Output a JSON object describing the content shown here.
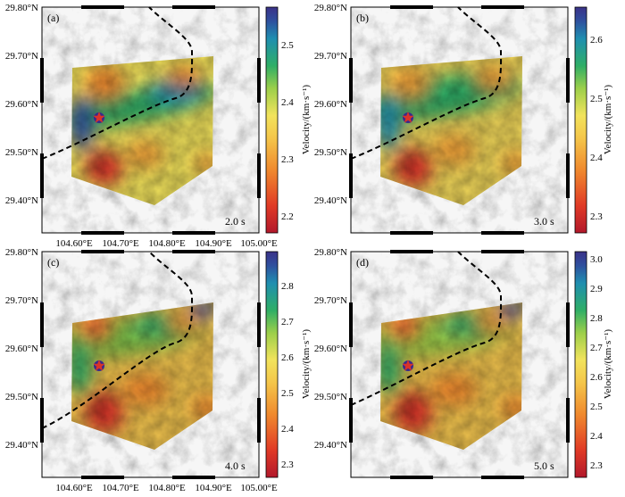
{
  "panels": [
    {
      "label": "(a)",
      "period": "2.0 s",
      "colorbar": {
        "ticks": [
          "2.2",
          "2.3",
          "2.4",
          "2.5"
        ],
        "title": "Velocity/(km·s⁻¹)"
      },
      "x_ticks": [
        "104.60°E",
        "104.70°E",
        "104.80°E",
        "104.90°E",
        "105.00°E"
      ],
      "y_ticks": [
        "29.80°N",
        "29.70°N",
        "29.60°N",
        "29.50°N",
        "29.40°N"
      ]
    },
    {
      "label": "(b)",
      "period": "3.0 s",
      "colorbar": {
        "ticks": [
          "2.3",
          "2.4",
          "2.5",
          "2.6"
        ],
        "title": "Velocity/(km·s⁻¹)"
      },
      "x_ticks": [
        "104.60°E",
        "104.70°E",
        "104.80°E",
        "104.90°E",
        "105.00°E"
      ],
      "y_ticks": [
        "29.80°N",
        "29.70°N",
        "29.60°N",
        "29.50°N",
        "29.40°N"
      ]
    },
    {
      "label": "(c)",
      "period": "4.0 s",
      "colorbar": {
        "ticks": [
          "2.3",
          "2.4",
          "2.5",
          "2.6",
          "2.7",
          "2.8"
        ],
        "title": "Velocity/(km·s⁻¹)"
      },
      "x_ticks": [
        "104.60°E",
        "104.70°E",
        "104.80°E",
        "104.90°E",
        "105.00°E"
      ],
      "y_ticks": [
        "29.80°N",
        "29.70°N",
        "29.60°N",
        "29.50°N",
        "29.40°N"
      ]
    },
    {
      "label": "(d)",
      "period": "5.0 s",
      "colorbar": {
        "ticks": [
          "2.3",
          "2.4",
          "2.5",
          "2.6",
          "2.7",
          "2.8",
          "2.9",
          "3.0"
        ],
        "title": "Velocity/(km·s⁻¹)"
      },
      "x_ticks": [
        "104.60°E",
        "104.70°E",
        "104.80°E",
        "104.90°E",
        "105.00°E"
      ],
      "y_ticks": [
        "29.80°N",
        "29.70°N",
        "29.60°N",
        "29.50°N",
        "29.40°N"
      ]
    }
  ],
  "colors": {
    "colormap": [
      "#b2182b",
      "#e03a26",
      "#f08a2e",
      "#f4c64a",
      "#f2e35c",
      "#9ccf4a",
      "#2fae66",
      "#1f8fb0",
      "#2f4f9e",
      "#3b3288"
    ],
    "terrain": "#c4c4c4",
    "fault_line": "#000000",
    "epicenter_circle": "#3a2a8a",
    "epicenter_star": "#d9332a"
  },
  "icons": {
    "epicenter": "star-on-circle-icon"
  }
}
